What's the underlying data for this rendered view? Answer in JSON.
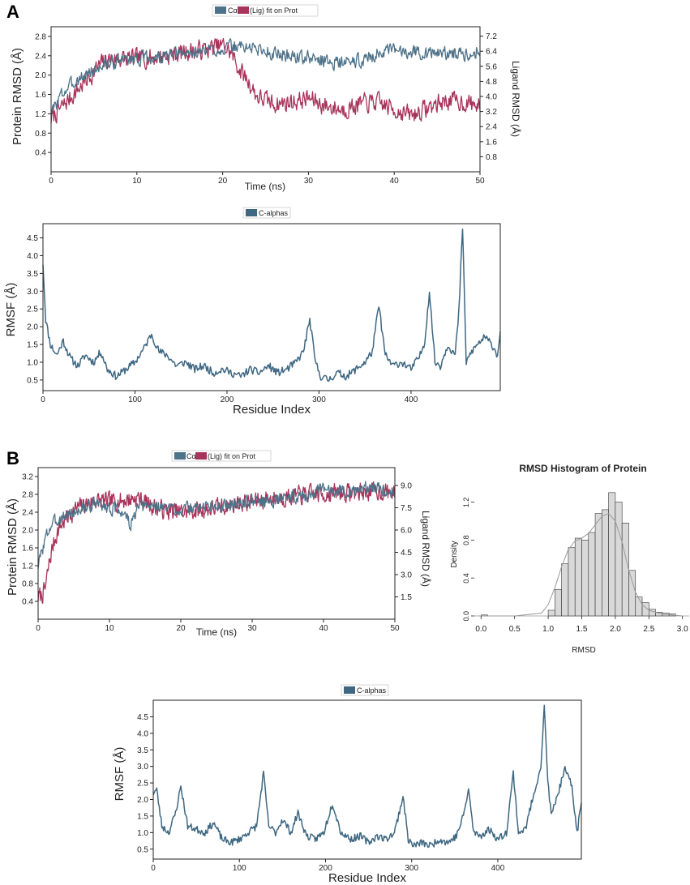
{
  "figure": {
    "panel_a_label": "A",
    "panel_b_label": "B",
    "colors": {
      "protein": "#4e7289",
      "ligand": "#a8345b",
      "rmsf": "#3e6782",
      "hist_bar": "#d9d9d9",
      "hist_edge": "#333333",
      "kde": "#999999"
    }
  },
  "chart_data": [
    {
      "id": "a_rmsd",
      "type": "line",
      "legend": {
        "protein_label": "Cα",
        "ligand_label": "(Lig) fit on Prot",
        "placement": "top-center"
      },
      "xlabel": "Time (ns)",
      "ylabel": "Protein RMSD (Å)",
      "y2label": "Ligand RMSD (Å)",
      "xlim": [
        0,
        50
      ],
      "ylim": [
        0,
        3.0
      ],
      "y2lim": [
        0,
        7.7
      ],
      "xticks": [
        0,
        10,
        20,
        30,
        40,
        50
      ],
      "yticks": [
        0.4,
        0.8,
        1.2,
        1.6,
        2.0,
        2.4,
        2.8
      ],
      "y2ticks": [
        0.8,
        1.6,
        2.4,
        3.2,
        4.0,
        4.8,
        5.6,
        6.4,
        7.2
      ],
      "series": [
        {
          "name": "Cα (protein)",
          "axis": "left",
          "x": [
            0,
            1,
            2,
            3,
            4,
            5,
            6,
            7,
            8,
            10,
            12,
            14,
            16,
            18,
            20,
            22,
            24,
            26,
            28,
            30,
            32,
            34,
            36,
            38,
            40,
            42,
            44,
            46,
            48,
            50
          ],
          "values": [
            1.2,
            1.55,
            1.75,
            1.9,
            2.0,
            2.1,
            2.2,
            2.25,
            2.3,
            2.35,
            2.35,
            2.4,
            2.45,
            2.5,
            2.55,
            2.6,
            2.55,
            2.45,
            2.4,
            2.35,
            2.3,
            2.25,
            2.3,
            2.45,
            2.5,
            2.5,
            2.45,
            2.45,
            2.45,
            2.5
          ]
        },
        {
          "name": "(Lig) fit on Prot",
          "axis": "right",
          "x": [
            0,
            1,
            2,
            3,
            4,
            5,
            6,
            7,
            8,
            10,
            12,
            14,
            16,
            18,
            20,
            21,
            22,
            23,
            24,
            26,
            28,
            30,
            32,
            34,
            36,
            38,
            40,
            42,
            44,
            46,
            48,
            50
          ],
          "values": [
            2.8,
            3.3,
            3.8,
            4.3,
            4.8,
            5.3,
            5.8,
            6.0,
            6.0,
            6.0,
            6.1,
            6.2,
            6.4,
            6.5,
            6.7,
            6.3,
            5.4,
            4.8,
            4.0,
            3.6,
            3.7,
            3.9,
            3.5,
            3.3,
            3.6,
            3.7,
            3.3,
            3.0,
            3.4,
            3.8,
            3.7,
            3.5
          ]
        }
      ]
    },
    {
      "id": "a_rmsf",
      "type": "line",
      "legend": {
        "label": "C-alphas",
        "placement": "top-center"
      },
      "xlabel": "Residue Index",
      "ylabel": "RMSF (Å)",
      "xlim": [
        0,
        497
      ],
      "ylim": [
        0.2,
        4.9
      ],
      "xticks": [
        0,
        100,
        200,
        300,
        400
      ],
      "yticks": [
        0.5,
        1.0,
        1.5,
        2.0,
        2.5,
        3.0,
        3.5,
        4.0,
        4.5
      ],
      "series": [
        {
          "name": "C-alphas",
          "x": [
            0,
            3,
            8,
            15,
            22,
            30,
            38,
            46,
            55,
            63,
            70,
            80,
            90,
            100,
            110,
            118,
            126,
            135,
            145,
            155,
            165,
            175,
            185,
            195,
            205,
            215,
            225,
            235,
            245,
            255,
            265,
            275,
            283,
            290,
            296,
            302,
            310,
            320,
            330,
            340,
            350,
            358,
            365,
            372,
            380,
            390,
            400,
            410,
            415,
            420,
            426,
            432,
            440,
            448,
            452,
            456,
            460,
            466,
            472,
            480,
            488,
            494,
            497
          ],
          "values": [
            3.8,
            2.2,
            1.5,
            1.2,
            1.6,
            1.1,
            0.9,
            1.2,
            1.0,
            1.3,
            0.8,
            0.6,
            0.8,
            1.0,
            1.4,
            1.8,
            1.3,
            1.2,
            0.9,
            1.0,
            0.8,
            0.9,
            0.7,
            0.8,
            0.7,
            0.6,
            0.8,
            0.7,
            0.9,
            0.7,
            0.8,
            1.0,
            1.3,
            2.2,
            1.0,
            0.6,
            0.5,
            0.7,
            0.6,
            0.8,
            1.0,
            1.3,
            2.6,
            1.2,
            0.9,
            1.0,
            0.8,
            1.2,
            1.6,
            3.0,
            1.0,
            0.9,
            1.5,
            1.2,
            2.4,
            4.8,
            1.0,
            1.3,
            1.5,
            1.7,
            1.5,
            1.2,
            1.9
          ]
        }
      ]
    },
    {
      "id": "b_rmsd",
      "type": "line",
      "legend": {
        "protein_label": "Cα",
        "ligand_label": "(Lig) fit on Prot",
        "placement": "top-center"
      },
      "xlabel": "Time (ns)",
      "ylabel": "Protein RMSD (Å)",
      "y2label": "Ligand RMSD (Å)",
      "xlim": [
        0,
        50
      ],
      "ylim": [
        0,
        3.4
      ],
      "y2lim": [
        0,
        10.2
      ],
      "xticks": [
        0,
        10,
        20,
        30,
        40,
        50
      ],
      "yticks": [
        0.4,
        0.8,
        1.2,
        1.6,
        2.0,
        2.4,
        2.8,
        3.2
      ],
      "y2ticks": [
        1.5,
        3.0,
        4.5,
        6.0,
        7.5,
        9.0
      ],
      "series": [
        {
          "name": "Cα (protein)",
          "axis": "left",
          "x": [
            0,
            0.5,
            1,
            1.5,
            2,
            3,
            4,
            5,
            6,
            8,
            10,
            12,
            13,
            14,
            16,
            18,
            20,
            22,
            24,
            26,
            28,
            30,
            32,
            34,
            36,
            38,
            40,
            42,
            44,
            46,
            48,
            50
          ],
          "values": [
            1.2,
            1.5,
            1.8,
            2.0,
            2.15,
            2.25,
            2.35,
            2.4,
            2.45,
            2.6,
            2.5,
            2.4,
            2.1,
            2.5,
            2.55,
            2.5,
            2.45,
            2.5,
            2.55,
            2.55,
            2.6,
            2.65,
            2.65,
            2.7,
            2.75,
            2.8,
            2.9,
            2.9,
            2.85,
            2.95,
            2.95,
            2.85
          ]
        },
        {
          "name": "(Lig) fit on Prot",
          "axis": "right",
          "x": [
            0,
            0.5,
            1,
            1.5,
            2,
            2.5,
            3,
            4,
            5,
            6,
            8,
            10,
            12,
            14,
            16,
            18,
            20,
            22,
            24,
            26,
            28,
            30,
            32,
            34,
            36,
            38,
            40,
            42,
            44,
            46,
            48,
            50
          ],
          "values": [
            1.5,
            1.6,
            2.0,
            3.6,
            4.8,
            5.6,
            6.2,
            6.8,
            7.3,
            7.6,
            8.0,
            7.9,
            8.0,
            8.2,
            7.6,
            7.3,
            7.2,
            7.3,
            7.4,
            7.6,
            7.8,
            7.9,
            8.1,
            8.2,
            8.3,
            8.4,
            8.4,
            8.5,
            8.5,
            8.6,
            8.6,
            8.5
          ]
        }
      ]
    },
    {
      "id": "b_hist",
      "type": "bar",
      "title": "RMSD Histogram of Protein",
      "xlabel": "RMSD",
      "ylabel": "Density",
      "xlim": [
        -0.1,
        3.1
      ],
      "ylim": [
        0,
        1.35
      ],
      "xticks": [
        0.0,
        0.5,
        1.0,
        1.5,
        2.0,
        2.5,
        3.0
      ],
      "yticks": [
        0.0,
        0.4,
        0.8,
        1.2
      ],
      "bin_width": 0.1,
      "bin_starts": [
        0.0,
        1.0,
        1.1,
        1.2,
        1.3,
        1.4,
        1.5,
        1.6,
        1.7,
        1.8,
        1.9,
        2.0,
        2.1,
        2.2,
        2.3,
        2.4,
        2.5,
        2.6,
        2.7,
        2.8
      ],
      "values": [
        0.01,
        0.06,
        0.28,
        0.55,
        0.72,
        0.82,
        0.8,
        0.88,
        1.08,
        1.12,
        1.3,
        1.2,
        0.98,
        0.48,
        0.2,
        0.14,
        0.07,
        0.04,
        0.03,
        0.02
      ],
      "kde": {
        "x": [
          -0.05,
          0.5,
          0.9,
          1.0,
          1.1,
          1.2,
          1.3,
          1.4,
          1.5,
          1.6,
          1.7,
          1.8,
          1.9,
          2.0,
          2.1,
          2.2,
          2.3,
          2.4,
          2.5,
          2.7,
          3.0
        ],
        "values": [
          0.0,
          0.0,
          0.03,
          0.12,
          0.3,
          0.52,
          0.7,
          0.79,
          0.82,
          0.87,
          0.96,
          1.05,
          1.08,
          1.0,
          0.78,
          0.48,
          0.25,
          0.12,
          0.06,
          0.02,
          0.0
        ]
      }
    },
    {
      "id": "b_rmsf",
      "type": "line",
      "legend": {
        "label": "C-alphas",
        "placement": "top-center"
      },
      "xlabel": "Residue Index",
      "ylabel": "RMSF (Å)",
      "xlim": [
        0,
        497
      ],
      "ylim": [
        0.2,
        5.0
      ],
      "xticks": [
        0,
        100,
        200,
        300,
        400
      ],
      "yticks": [
        0.5,
        1.0,
        1.5,
        2.0,
        2.5,
        3.0,
        3.5,
        4.0,
        4.5
      ],
      "series": [
        {
          "name": "C-alphas",
          "x": [
            0,
            4,
            10,
            18,
            26,
            32,
            40,
            50,
            60,
            70,
            80,
            90,
            100,
            110,
            120,
            128,
            134,
            142,
            150,
            160,
            168,
            178,
            188,
            198,
            208,
            218,
            230,
            240,
            250,
            260,
            270,
            280,
            290,
            296,
            302,
            312,
            322,
            332,
            342,
            352,
            360,
            366,
            372,
            380,
            390,
            400,
            410,
            418,
            424,
            432,
            442,
            450,
            454,
            458,
            462,
            470,
            478,
            486,
            492,
            497
          ],
          "values": [
            2.2,
            2.3,
            1.2,
            1.0,
            1.6,
            2.4,
            1.2,
            1.1,
            1.0,
            1.3,
            0.8,
            0.7,
            0.8,
            1.0,
            1.2,
            2.8,
            1.2,
            1.0,
            1.4,
            1.0,
            1.6,
            0.9,
            0.8,
            1.0,
            1.9,
            1.0,
            0.8,
            0.9,
            0.7,
            0.9,
            0.8,
            1.0,
            2.1,
            0.8,
            0.6,
            0.7,
            0.6,
            0.8,
            0.7,
            0.9,
            1.5,
            2.3,
            1.0,
            0.9,
            1.1,
            0.8,
            1.0,
            2.8,
            1.0,
            1.1,
            2.2,
            3.0,
            4.8,
            2.6,
            1.5,
            2.2,
            2.9,
            2.4,
            1.0,
            1.9
          ]
        }
      ]
    }
  ]
}
